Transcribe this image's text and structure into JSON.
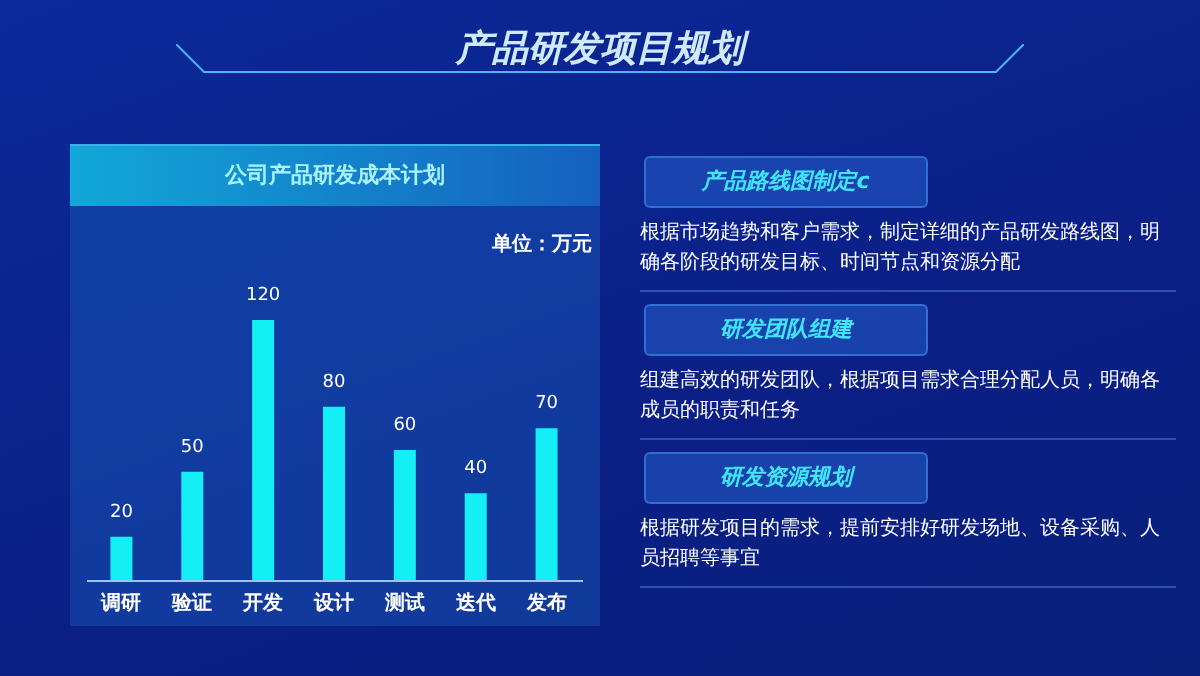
{
  "chart_data": {
    "type": "bar",
    "title": "产品研发项目规划",
    "subtitle": "公司产品研发成本计划",
    "categories": [
      "调研",
      "验证",
      "开发",
      "设计",
      "测试",
      "迭代",
      "发布"
    ],
    "values": [
      20,
      50,
      120,
      80,
      60,
      40,
      70
    ],
    "color": "#14eef5",
    "data_labels": true,
    "grid": false,
    "annotations": [
      "单位：万元",
      "产品路线图制定c",
      "根据市场趋势和客户需求，制定详细的产品研发路线图，明确各阶段的研发目标、时间节点和资源分配",
      "研发团队组建",
      "组建高效的研发团队，根据项目需求合理分配人员，明确各成员的职责和任务",
      "研发资源规划",
      "根据研发项目的需求，提前安排好研发场地、设备采购、人员招聘等事宜"
    ]
  }
}
